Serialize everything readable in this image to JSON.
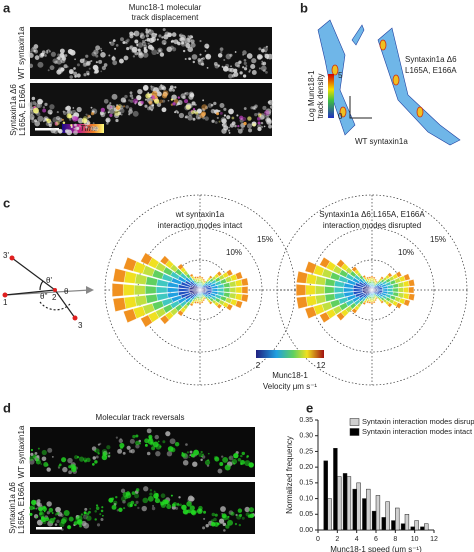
{
  "panel_a": {
    "letter": "a",
    "title_lines": [
      "Munc18-1 molecular",
      "track displacement"
    ],
    "label_top": "WT syntaxin1a",
    "label_bottom_lines": [
      "Syntaxin1a Δ6",
      "L165A, E166A"
    ],
    "time_label": "Time"
  },
  "panel_b": {
    "letter": "b",
    "axis_label_lines": [
      "Log Munc18-1",
      "track density"
    ],
    "scale_max": 5,
    "scale_min": 0,
    "mutant_lines": [
      "Syntaxin1a Δ6",
      "L165A, E166A"
    ],
    "wt_label": "WT syntaxin1a"
  },
  "panel_c": {
    "letter": "c",
    "left_title_lines": [
      "wt syntaxin1a",
      "interaction modes intact"
    ],
    "right_title_lines": [
      "Syntaxin1a Δ6 L165A, E166A",
      "interaction modes disrupted"
    ],
    "ring_outer": "15%",
    "ring_inner": "10%",
    "diagram_labels": [
      "1",
      "2",
      "3",
      "3'",
      "θ",
      "θ'",
      "θ''"
    ],
    "velocity_lines": [
      "Munc18-1",
      "Velocity μm s⁻¹"
    ],
    "velocity_min": 2,
    "velocity_max": 12
  },
  "panel_d": {
    "letter": "d",
    "title": "Molecular track reversals",
    "label_top": "WT syntaxin1a",
    "label_bottom_lines": [
      "Syntaxin1a Δ6",
      "L165A, E166A"
    ]
  },
  "chart_data": {
    "type": "bar",
    "letter": "e",
    "x_label": "Munc18-1 speed (μm s⁻¹)",
    "y_label": "Normalized frequency",
    "x": [
      1,
      2,
      3,
      4,
      5,
      6,
      7,
      8,
      9,
      10,
      11
    ],
    "series": [
      {
        "name": "Syntaxin interaction modes disrupted",
        "color": "#d0d0d0",
        "values": [
          0.1,
          0.17,
          0.17,
          0.15,
          0.13,
          0.11,
          0.09,
          0.07,
          0.05,
          0.03,
          0.02
        ]
      },
      {
        "name": "Syntaxin interaction modes intact",
        "color": "#000000",
        "values": [
          0.22,
          0.26,
          0.18,
          0.13,
          0.1,
          0.06,
          0.04,
          0.03,
          0.02,
          0.01,
          0.01
        ]
      }
    ],
    "xlim": [
      0,
      12
    ],
    "xticks": [
      0,
      2,
      4,
      6,
      8,
      10,
      12
    ],
    "ylim": [
      0,
      0.35
    ],
    "yticks": [
      {
        "value": 0,
        "label": "0.00"
      },
      {
        "value": 0.05,
        "label": "0.05"
      },
      {
        "value": 0.1,
        "label": "0.10"
      },
      {
        "value": 0.15,
        "label": "0.15"
      },
      {
        "value": 0.2,
        "label": "0.20"
      },
      {
        "value": 0.25,
        "label": "0.25"
      },
      {
        "value": 0.3,
        "label": "0.30"
      },
      {
        "value": 0.35,
        "label": "0.35"
      }
    ]
  }
}
